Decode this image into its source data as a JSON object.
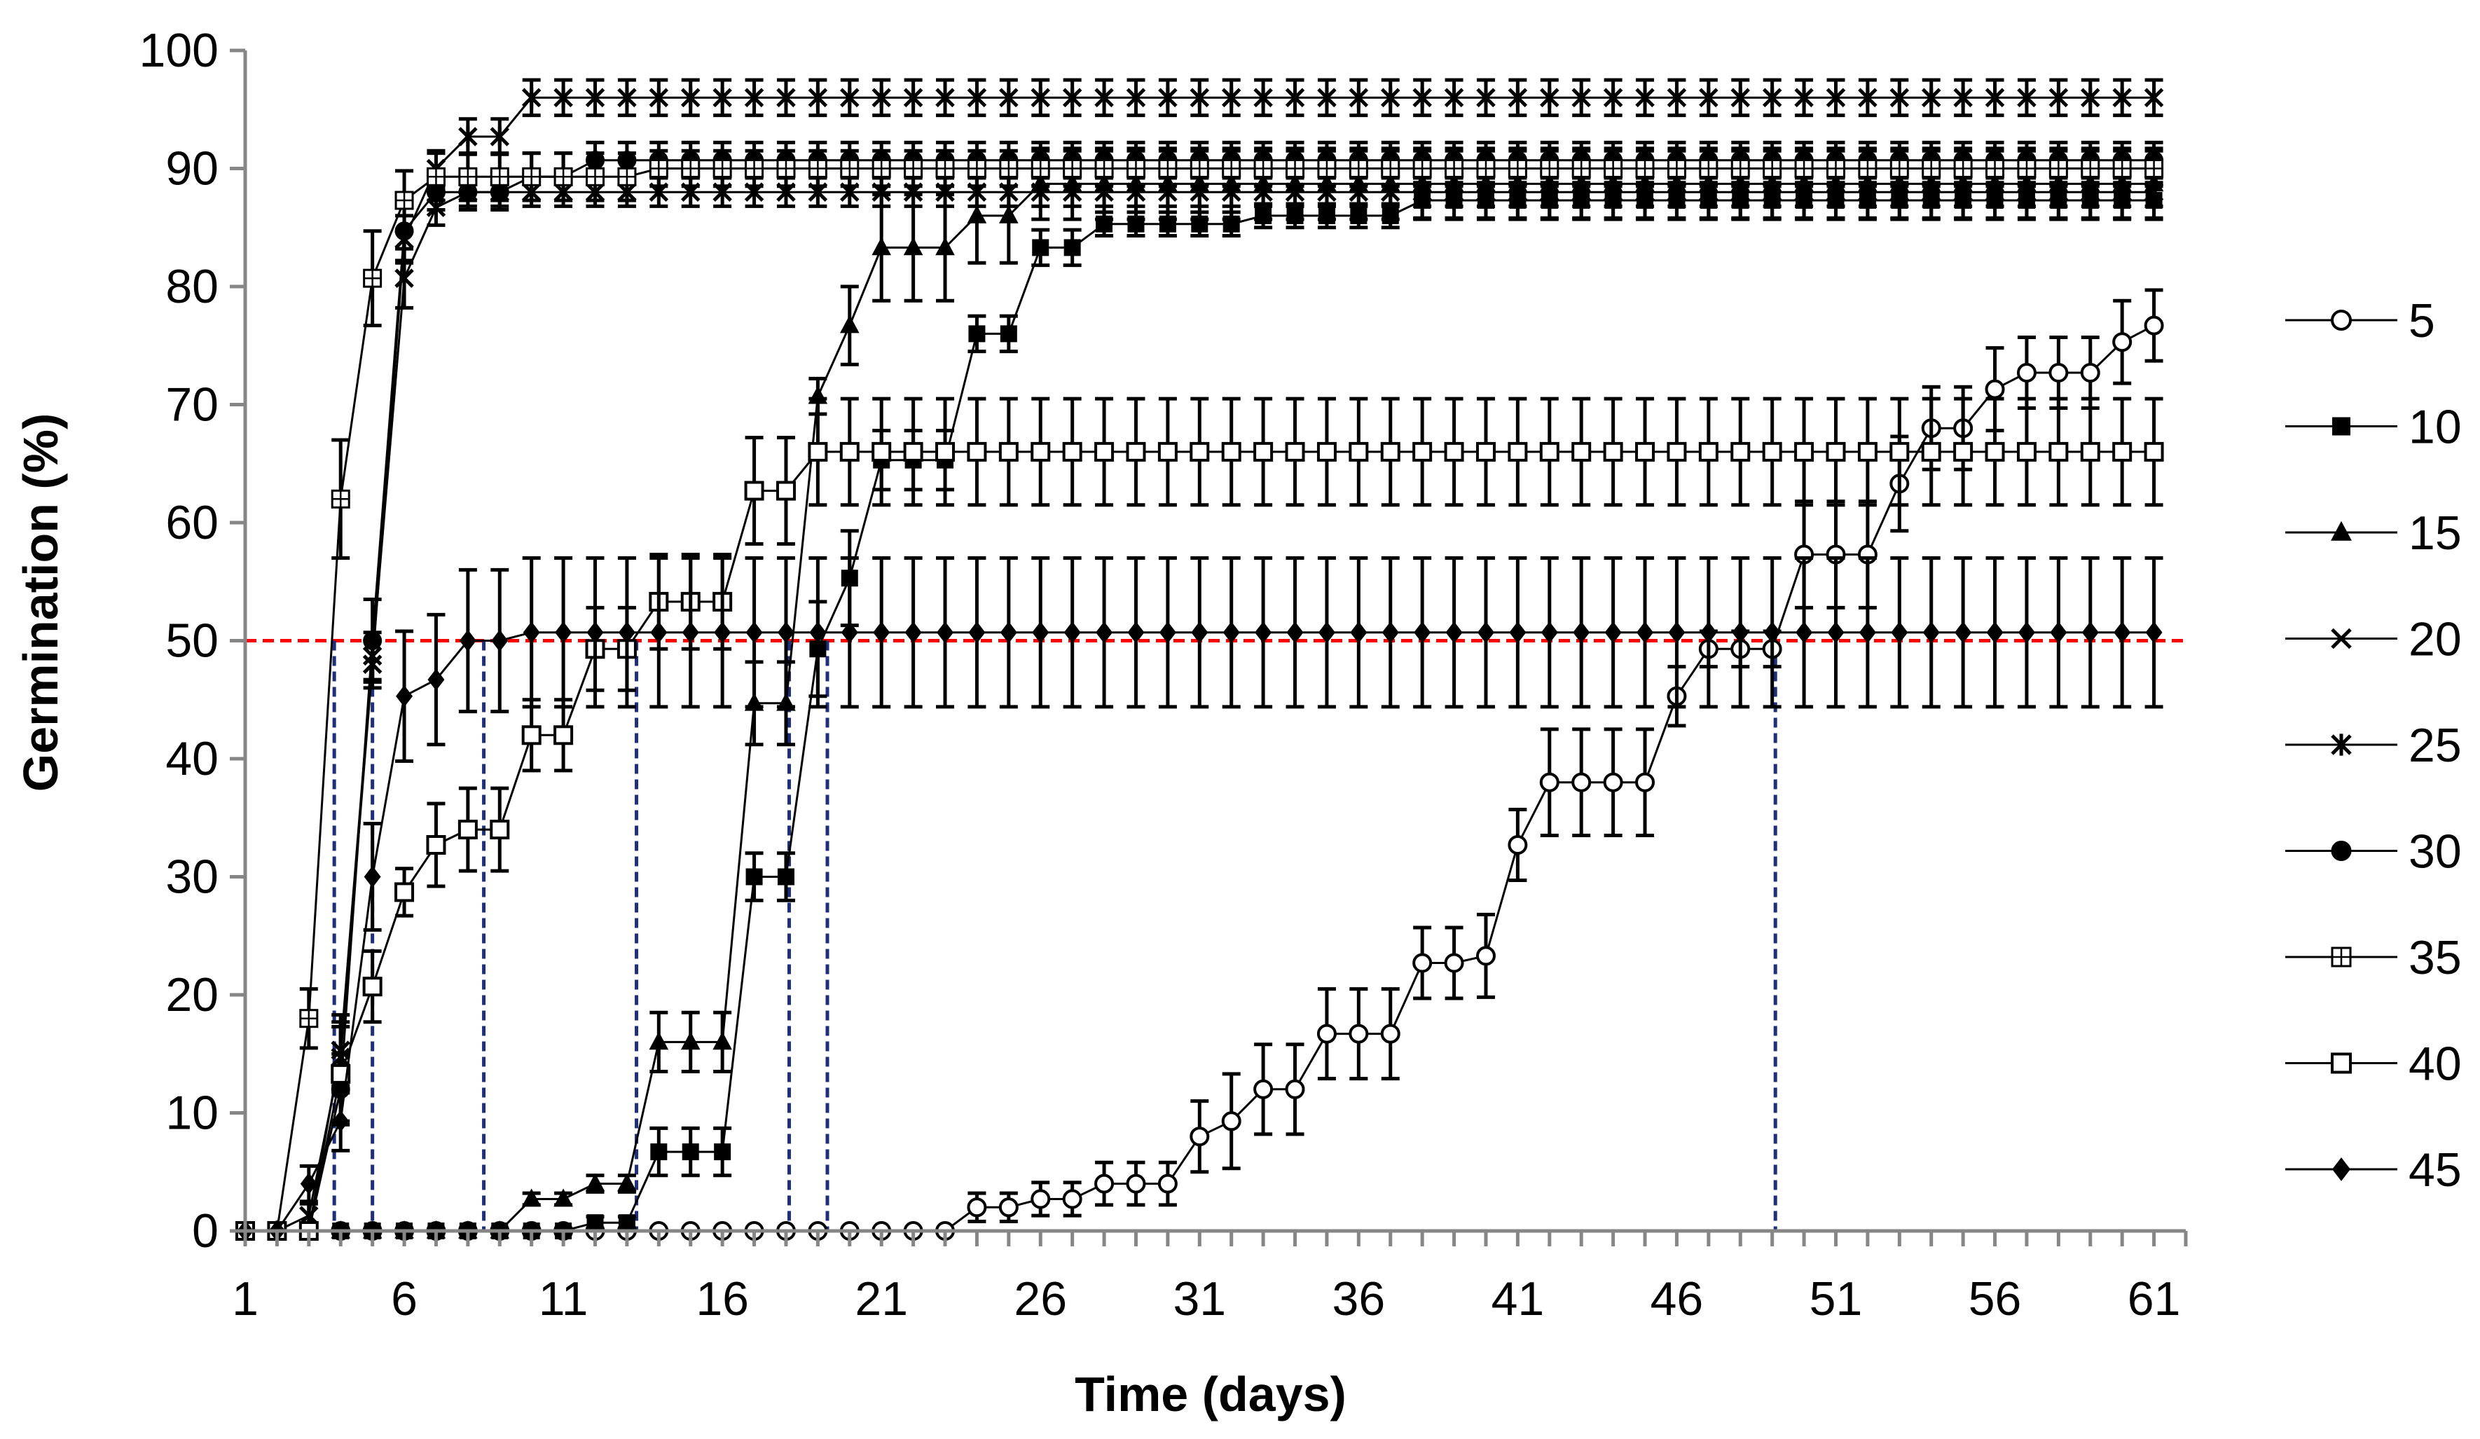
{
  "chart_data": {
    "type": "line",
    "title": "",
    "xlabel": "Time (days)",
    "ylabel": "Germination (%)",
    "xlim": [
      1,
      62
    ],
    "ylim": [
      0,
      100
    ],
    "xticks": [
      1,
      6,
      11,
      16,
      21,
      26,
      31,
      36,
      41,
      46,
      51,
      56,
      61
    ],
    "yticks": [
      0,
      10,
      20,
      30,
      40,
      50,
      60,
      70,
      80,
      90,
      100
    ],
    "x": [
      1,
      2,
      3,
      4,
      5,
      6,
      7,
      8,
      9,
      10,
      11,
      12,
      13,
      14,
      15,
      16,
      17,
      18,
      19,
      20,
      21,
      22,
      23,
      24,
      25,
      26,
      27,
      28,
      29,
      30,
      31,
      32,
      33,
      34,
      35,
      36,
      37,
      38,
      39,
      40,
      41,
      42,
      43,
      44,
      45,
      46,
      47,
      48,
      49,
      50,
      51,
      52,
      53,
      54,
      55,
      56,
      57,
      58,
      59,
      60,
      61
    ],
    "reference_line": {
      "y": 50,
      "color": "#ff0000",
      "style": "dashed"
    },
    "t50_lines": [
      {
        "x": 3.8,
        "y": 50
      },
      {
        "x": 5.0,
        "y": 50
      },
      {
        "x": 8.5,
        "y": 50
      },
      {
        "x": 13.3,
        "y": 50
      },
      {
        "x": 18.1,
        "y": 50
      },
      {
        "x": 19.3,
        "y": 50
      },
      {
        "x": 49.1,
        "y": 50
      }
    ],
    "t50_line_color": "#1f2f7a",
    "series": [
      {
        "name": "5",
        "marker": "open-circle",
        "values": [
          0,
          0,
          0,
          0,
          0,
          0,
          0,
          0,
          0,
          0,
          0,
          0,
          0,
          0,
          0,
          0,
          0,
          0,
          0,
          0,
          0,
          0,
          0,
          2,
          2,
          2.7,
          2.7,
          4,
          4,
          4,
          8,
          9.3,
          12,
          12,
          16.7,
          16.7,
          16.7,
          22.7,
          22.7,
          23.3,
          32.7,
          38,
          38,
          38,
          38,
          45.3,
          49.3,
          49.3,
          49.3,
          57.3,
          57.3,
          57.3,
          63.3,
          68,
          68,
          71.3,
          72.7,
          72.7,
          72.7,
          75.3,
          76.7
        ],
        "errors": [
          0,
          0,
          0,
          0,
          0,
          0,
          0,
          0,
          0,
          0,
          0,
          0,
          0,
          0,
          0,
          0,
          0,
          0,
          0,
          0,
          0,
          0,
          0,
          1.2,
          1.2,
          1.4,
          1.4,
          1.8,
          1.8,
          1.8,
          3,
          4,
          3.8,
          3.8,
          3.8,
          3.8,
          3.8,
          3,
          3,
          3.5,
          3,
          4.5,
          4.5,
          4.5,
          4.5,
          2.5,
          1.5,
          1.5,
          1.5,
          4.5,
          4.5,
          4.5,
          4,
          3.5,
          3.5,
          3.5,
          3,
          3,
          3,
          3.5,
          3
        ]
      },
      {
        "name": "10",
        "marker": "filled-square",
        "values": [
          0,
          0,
          0,
          0,
          0,
          0,
          0,
          0,
          0,
          0,
          0,
          0.7,
          0.7,
          6.7,
          6.7,
          6.7,
          30,
          30,
          49.3,
          55.3,
          65.3,
          65.3,
          65.3,
          76,
          76,
          83.3,
          83.3,
          85.3,
          85.3,
          85.3,
          85.3,
          85.3,
          86,
          86,
          86,
          86,
          86,
          87.3,
          87.3,
          87.3,
          87.3,
          87.3,
          87.3,
          87.3,
          87.3,
          87.3,
          87.3,
          87.3,
          87.3,
          87.3,
          87.3,
          87.3,
          87.3,
          87.3,
          87.3,
          87.3,
          87.3,
          87.3,
          87.3,
          87.3,
          87.3
        ],
        "errors": [
          0,
          0,
          0,
          0,
          0,
          0,
          0,
          0,
          0,
          0,
          0,
          0.5,
          0.5,
          2,
          2,
          2,
          2,
          2,
          4,
          4,
          2.5,
          2.5,
          2.5,
          1.5,
          1.5,
          1.5,
          1.5,
          1,
          1,
          1,
          1,
          1,
          1,
          1,
          1,
          1,
          1,
          1.5,
          1.5,
          1.5,
          1.5,
          1.5,
          1.5,
          1.5,
          1.5,
          1.5,
          1.5,
          1.5,
          1.5,
          1.5,
          1.5,
          1.5,
          1.5,
          1.5,
          1.5,
          1.5,
          1.5,
          1.5,
          1.5,
          1.5,
          1.5
        ]
      },
      {
        "name": "15",
        "marker": "filled-triangle",
        "values": [
          0,
          0,
          0,
          0,
          0,
          0,
          0,
          0,
          0,
          2.7,
          2.7,
          4,
          4,
          16,
          16,
          16,
          44.7,
          44.7,
          70.7,
          76.7,
          83.3,
          83.3,
          83.3,
          86,
          86,
          88.7,
          88.7,
          88.7,
          88.7,
          88.7,
          88.7,
          88.7,
          88.7,
          88.7,
          88.7,
          88.7,
          88.7,
          88.7,
          88.7,
          88.7,
          88.7,
          88.7,
          88.7,
          88.7,
          88.7,
          88.7,
          88.7,
          88.7,
          88.7,
          88.7,
          88.7,
          88.7,
          88.7,
          88.7,
          88.7,
          88.7,
          88.7,
          88.7,
          88.7,
          88.7,
          88.7
        ],
        "errors": [
          0,
          0,
          0,
          0,
          0,
          0,
          0,
          0,
          0,
          0.5,
          0.5,
          0.7,
          0.7,
          2.5,
          2.5,
          2.5,
          3.5,
          3.5,
          1.5,
          3.3,
          4.5,
          4.5,
          4.5,
          4,
          4,
          3,
          3,
          3,
          3,
          3,
          3,
          3,
          3,
          3,
          3,
          3,
          3,
          3,
          3,
          3,
          3,
          3,
          3,
          3,
          3,
          3,
          3,
          3,
          3,
          3,
          3,
          3,
          3,
          3,
          3,
          3,
          3,
          3,
          3,
          3,
          3
        ]
      },
      {
        "name": "20",
        "marker": "x",
        "values": [
          0,
          0,
          0,
          15.3,
          48.7,
          80.7,
          86.7,
          88,
          88,
          88,
          88,
          88,
          88,
          88,
          88,
          88,
          88,
          88,
          88,
          88,
          88,
          88,
          88,
          88,
          88,
          88,
          88,
          88,
          88,
          88,
          88,
          88,
          88,
          88,
          88,
          88,
          88,
          88,
          88,
          88,
          88,
          88,
          88,
          88,
          88,
          88,
          88,
          88,
          88,
          88,
          88,
          88,
          88,
          88,
          88,
          88,
          88,
          88,
          88,
          88,
          88
        ],
        "errors": [
          0,
          0,
          0,
          3,
          2,
          2.5,
          1.5,
          1.2,
          1.2,
          1.2,
          1.2,
          1.2,
          1.2,
          1.2,
          1.2,
          1.2,
          1.2,
          1.2,
          1.2,
          1.2,
          1.2,
          1.2,
          1.2,
          1.2,
          1.2,
          1.2,
          1.2,
          1.2,
          1.2,
          1.2,
          1.2,
          1.2,
          1.2,
          1.2,
          1.2,
          1.2,
          1.2,
          1.2,
          1.2,
          1.2,
          1.2,
          1.2,
          1.2,
          1.2,
          1.2,
          1.2,
          1.2,
          1.2,
          1.2,
          1.2,
          1.2,
          1.2,
          1.2,
          1.2,
          1.2,
          1.2,
          1.2,
          1.2,
          1.2,
          1.2,
          1.2
        ]
      },
      {
        "name": "25",
        "marker": "star",
        "values": [
          0,
          0,
          1.3,
          14.7,
          48,
          84,
          90,
          92.7,
          92.7,
          96,
          96,
          96,
          96,
          96,
          96,
          96,
          96,
          96,
          96,
          96,
          96,
          96,
          96,
          96,
          96,
          96,
          96,
          96,
          96,
          96,
          96,
          96,
          96,
          96,
          96,
          96,
          96,
          96,
          96,
          96,
          96,
          96,
          96,
          96,
          96,
          96,
          96,
          96,
          96,
          96,
          96,
          96,
          96,
          96,
          96,
          96,
          96,
          96,
          96,
          96,
          96
        ],
        "errors": [
          0,
          0,
          1,
          3,
          2,
          2,
          1.5,
          1.5,
          1.5,
          1.5,
          1.5,
          1.5,
          1.5,
          1.5,
          1.5,
          1.5,
          1.5,
          1.5,
          1.5,
          1.5,
          1.5,
          1.5,
          1.5,
          1.5,
          1.5,
          1.5,
          1.5,
          1.5,
          1.5,
          1.5,
          1.5,
          1.5,
          1.5,
          1.5,
          1.5,
          1.5,
          1.5,
          1.5,
          1.5,
          1.5,
          1.5,
          1.5,
          1.5,
          1.5,
          1.5,
          1.5,
          1.5,
          1.5,
          1.5,
          1.5,
          1.5,
          1.5,
          1.5,
          1.5,
          1.5,
          1.5,
          1.5,
          1.5,
          1.5,
          1.5,
          1.5
        ]
      },
      {
        "name": "30",
        "marker": "filled-circle",
        "values": [
          0,
          0,
          0,
          12,
          50,
          84.7,
          88,
          88,
          88,
          89.3,
          89.3,
          90.7,
          90.7,
          90.7,
          90.7,
          90.7,
          90.7,
          90.7,
          90.7,
          90.7,
          90.7,
          90.7,
          90.7,
          90.7,
          90.7,
          90.7,
          90.7,
          90.7,
          90.7,
          90.7,
          90.7,
          90.7,
          90.7,
          90.7,
          90.7,
          90.7,
          90.7,
          90.7,
          90.7,
          90.7,
          90.7,
          90.7,
          90.7,
          90.7,
          90.7,
          90.7,
          90.7,
          90.7,
          90.7,
          90.7,
          90.7,
          90.7,
          90.7,
          90.7,
          90.7,
          90.7,
          90.7,
          90.7,
          90.7,
          90.7,
          90.7
        ],
        "errors": [
          0,
          0,
          0,
          3,
          3.5,
          2.5,
          1.5,
          1.5,
          1.5,
          2,
          2,
          1.5,
          1.5,
          1.5,
          1.5,
          1.5,
          1.5,
          1.5,
          1.5,
          1.5,
          1.5,
          1.5,
          1.5,
          1.5,
          1.5,
          1.5,
          1.5,
          1.5,
          1.5,
          1.5,
          1.5,
          1.5,
          1.5,
          1.5,
          1.5,
          1.5,
          1.5,
          1.5,
          1.5,
          1.5,
          1.5,
          1.5,
          1.5,
          1.5,
          1.5,
          1.5,
          1.5,
          1.5,
          1.5,
          1.5,
          1.5,
          1.5,
          1.5,
          1.5,
          1.5,
          1.5,
          1.5,
          1.5,
          1.5,
          1.5,
          1.5
        ]
      },
      {
        "name": "35",
        "marker": "square-plus",
        "values": [
          0,
          0,
          18,
          62,
          80.7,
          87.3,
          89.3,
          89.3,
          89.3,
          89.3,
          89.3,
          89.3,
          89.3,
          90,
          90,
          90,
          90,
          90,
          90,
          90,
          90,
          90,
          90,
          90,
          90,
          90,
          90,
          90,
          90,
          90,
          90,
          90,
          90,
          90,
          90,
          90,
          90,
          90,
          90,
          90,
          90,
          90,
          90,
          90,
          90,
          90,
          90,
          90,
          90,
          90,
          90,
          90,
          90,
          90,
          90,
          90,
          90,
          90,
          90,
          90,
          90
        ],
        "errors": [
          0,
          0,
          2.5,
          5,
          4,
          2.5,
          2,
          2,
          2,
          2,
          2,
          2,
          2,
          1.5,
          1.5,
          1.5,
          1.5,
          1.5,
          1.5,
          1.5,
          1.5,
          1.5,
          1.5,
          1.5,
          1.5,
          1.5,
          1.5,
          1.5,
          1.5,
          1.5,
          1.5,
          1.5,
          1.5,
          1.5,
          1.5,
          1.5,
          1.5,
          1.5,
          1.5,
          1.5,
          1.5,
          1.5,
          1.5,
          1.5,
          1.5,
          1.5,
          1.5,
          1.5,
          1.5,
          1.5,
          1.5,
          1.5,
          1.5,
          1.5,
          1.5,
          1.5,
          1.5,
          1.5,
          1.5,
          1.5,
          1.5
        ]
      },
      {
        "name": "40",
        "marker": "open-square",
        "values": [
          0,
          0,
          0,
          13.3,
          20.7,
          28.7,
          32.7,
          34,
          34,
          42,
          42,
          49.3,
          49.3,
          53.3,
          53.3,
          53.3,
          62.7,
          62.7,
          66,
          66,
          66,
          66,
          66,
          66,
          66,
          66,
          66,
          66,
          66,
          66,
          66,
          66,
          66,
          66,
          66,
          66,
          66,
          66,
          66,
          66,
          66,
          66,
          66,
          66,
          66,
          66,
          66,
          66,
          66,
          66,
          66,
          66,
          66,
          66,
          66,
          66,
          66,
          66,
          66,
          66,
          66
        ],
        "errors": [
          0,
          0,
          0,
          4,
          3,
          2,
          3.5,
          3.5,
          3.5,
          3,
          3,
          3.5,
          3.5,
          4,
          4,
          4,
          4.5,
          4.5,
          4.5,
          4.5,
          4.5,
          4.5,
          4.5,
          4.5,
          4.5,
          4.5,
          4.5,
          4.5,
          4.5,
          4.5,
          4.5,
          4.5,
          4.5,
          4.5,
          4.5,
          4.5,
          4.5,
          4.5,
          4.5,
          4.5,
          4.5,
          4.5,
          4.5,
          4.5,
          4.5,
          4.5,
          4.5,
          4.5,
          4.5,
          4.5,
          4.5,
          4.5,
          4.5,
          4.5,
          4.5,
          4.5,
          4.5,
          4.5,
          4.5,
          4.5,
          4.5
        ]
      },
      {
        "name": "45",
        "marker": "filled-diamond",
        "values": [
          0,
          0,
          4,
          9.3,
          30,
          45.3,
          46.7,
          50,
          50,
          50.7,
          50.7,
          50.7,
          50.7,
          50.7,
          50.7,
          50.7,
          50.7,
          50.7,
          50.7,
          50.7,
          50.7,
          50.7,
          50.7,
          50.7,
          50.7,
          50.7,
          50.7,
          50.7,
          50.7,
          50.7,
          50.7,
          50.7,
          50.7,
          50.7,
          50.7,
          50.7,
          50.7,
          50.7,
          50.7,
          50.7,
          50.7,
          50.7,
          50.7,
          50.7,
          50.7,
          50.7,
          50.7,
          50.7,
          50.7,
          50.7,
          50.7,
          50.7,
          50.7,
          50.7,
          50.7,
          50.7,
          50.7,
          50.7,
          50.7,
          50.7,
          50.7
        ],
        "errors": [
          0,
          0,
          1.5,
          2.5,
          4.5,
          5.5,
          5.5,
          6,
          6,
          6.3,
          6.3,
          6.3,
          6.3,
          6.3,
          6.3,
          6.3,
          6.3,
          6.3,
          6.3,
          6.3,
          6.3,
          6.3,
          6.3,
          6.3,
          6.3,
          6.3,
          6.3,
          6.3,
          6.3,
          6.3,
          6.3,
          6.3,
          6.3,
          6.3,
          6.3,
          6.3,
          6.3,
          6.3,
          6.3,
          6.3,
          6.3,
          6.3,
          6.3,
          6.3,
          6.3,
          6.3,
          6.3,
          6.3,
          6.3,
          6.3,
          6.3,
          6.3,
          6.3,
          6.3,
          6.3,
          6.3,
          6.3,
          6.3,
          6.3,
          6.3,
          6.3
        ]
      }
    ]
  }
}
